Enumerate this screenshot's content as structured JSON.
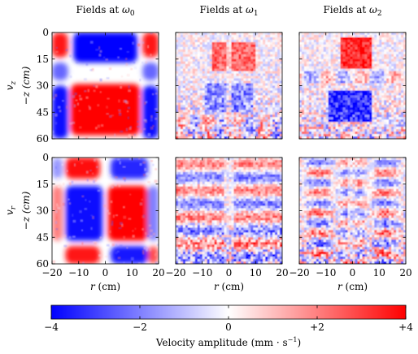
{
  "chart_data": {
    "type": "heatmap",
    "column_titles": [
      {
        "prefix": "Fields at ",
        "sym": "ω",
        "sub": "0"
      },
      {
        "prefix": "Fields at ",
        "sym": "ω",
        "sub": "1"
      },
      {
        "prefix": "Fields at ",
        "sym": "ω",
        "sub": "2"
      }
    ],
    "rows": [
      {
        "var_sym": "v",
        "var_sub": "z",
        "axis_label": "−z (cm)"
      },
      {
        "var_sym": "v",
        "var_sub": "r",
        "axis_label": "−z (cm)"
      }
    ],
    "xlabel": {
      "sym": "r",
      "unit": " (cm)"
    },
    "x_ticks": [
      "−20",
      "−10",
      "0",
      "10",
      "20"
    ],
    "y_ticks": [
      "0",
      "15",
      "30",
      "45",
      "60"
    ],
    "xlim": [
      -20,
      20
    ],
    "ylim": [
      0,
      60
    ],
    "colorbar": {
      "ticks": [
        "−4",
        "−2",
        "0",
        "+2",
        "+4"
      ],
      "range": [
        -4,
        4
      ],
      "label": "Velocity amplitude (mm · s",
      "label_exp": "−1",
      "label_end": ")"
    },
    "colors": {
      "negative": "#0000ff",
      "zero": "#ffffff",
      "positive": "#ff0000"
    }
  }
}
